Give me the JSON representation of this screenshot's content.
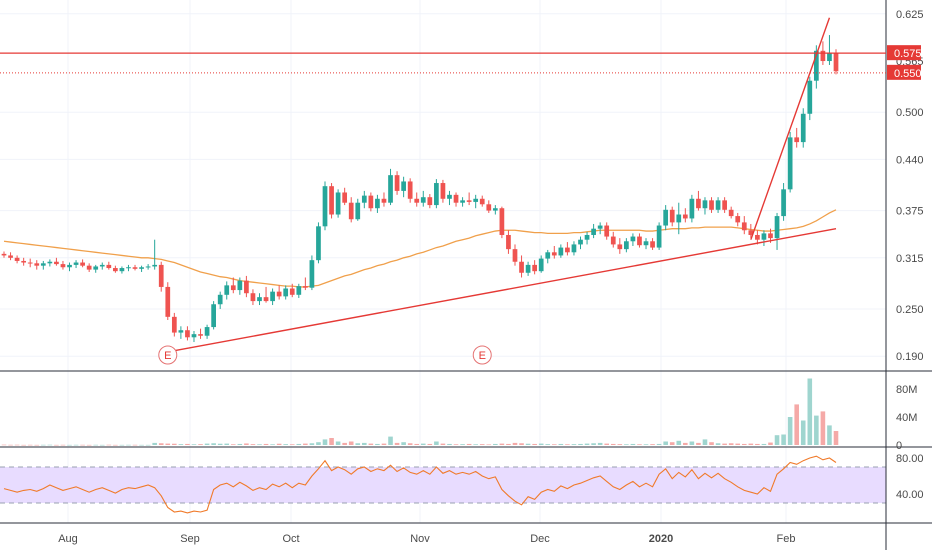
{
  "colors": {
    "up": "#26a69a",
    "down": "#ef5350",
    "ma": "#f0a04b",
    "trendline": "#e53935",
    "level": "#e53935",
    "rsi_line": "#f07a2a",
    "rsi_band": "#e8dcff",
    "grid": "#f0f3fa",
    "axis_text": "#4a4a4a",
    "separator": "#2a2e39"
  },
  "x_axis": {
    "labels": [
      "Aug",
      "Sep",
      "Oct",
      "Nov",
      "Dec",
      "2020",
      "Feb"
    ]
  },
  "price_axis": {
    "ticks": [
      "0.625",
      "0.500",
      "0.440",
      "0.375",
      "0.315",
      "0.250",
      "0.190"
    ],
    "labels_575": "0.575",
    "labels_550": "0.550",
    "hidden_label": "0.565"
  },
  "volume_axis": {
    "ticks": [
      "80M",
      "40M",
      "0"
    ]
  },
  "rsi_axis": {
    "ticks": [
      "80.00",
      "40.00"
    ]
  },
  "earnings_markers": [
    "E",
    "E"
  ],
  "chart_data": {
    "type": "candlestick",
    "x_start": "2019-07-16",
    "ohlc": [
      [
        0.32,
        0.323,
        0.315,
        0.318
      ],
      [
        0.318,
        0.322,
        0.312,
        0.315
      ],
      [
        0.315,
        0.318,
        0.308,
        0.311
      ],
      [
        0.311,
        0.315,
        0.305,
        0.309
      ],
      [
        0.309,
        0.314,
        0.303,
        0.308
      ],
      [
        0.308,
        0.312,
        0.3,
        0.305
      ],
      [
        0.305,
        0.311,
        0.3,
        0.308
      ],
      [
        0.308,
        0.313,
        0.304,
        0.31
      ],
      [
        0.31,
        0.315,
        0.305,
        0.307
      ],
      [
        0.307,
        0.311,
        0.3,
        0.303
      ],
      [
        0.303,
        0.309,
        0.298,
        0.306
      ],
      [
        0.306,
        0.312,
        0.302,
        0.309
      ],
      [
        0.309,
        0.313,
        0.303,
        0.305
      ],
      [
        0.305,
        0.308,
        0.297,
        0.3
      ],
      [
        0.3,
        0.306,
        0.296,
        0.304
      ],
      [
        0.304,
        0.309,
        0.3,
        0.306
      ],
      [
        0.306,
        0.31,
        0.3,
        0.302
      ],
      [
        0.302,
        0.305,
        0.296,
        0.298
      ],
      [
        0.298,
        0.304,
        0.295,
        0.302
      ],
      [
        0.302,
        0.306,
        0.298,
        0.303
      ],
      [
        0.303,
        0.306,
        0.299,
        0.301
      ],
      [
        0.301,
        0.305,
        0.297,
        0.303
      ],
      [
        0.303,
        0.307,
        0.3,
        0.304
      ],
      [
        0.304,
        0.338,
        0.3,
        0.306
      ],
      [
        0.306,
        0.31,
        0.272,
        0.278
      ],
      [
        0.278,
        0.284,
        0.236,
        0.24
      ],
      [
        0.24,
        0.245,
        0.215,
        0.22
      ],
      [
        0.22,
        0.228,
        0.212,
        0.223
      ],
      [
        0.223,
        0.228,
        0.21,
        0.214
      ],
      [
        0.214,
        0.222,
        0.208,
        0.218
      ],
      [
        0.218,
        0.225,
        0.212,
        0.216
      ],
      [
        0.216,
        0.23,
        0.212,
        0.227
      ],
      [
        0.227,
        0.26,
        0.224,
        0.256
      ],
      [
        0.256,
        0.272,
        0.25,
        0.268
      ],
      [
        0.268,
        0.285,
        0.262,
        0.28
      ],
      [
        0.28,
        0.29,
        0.27,
        0.274
      ],
      [
        0.274,
        0.29,
        0.268,
        0.286
      ],
      [
        0.286,
        0.292,
        0.265,
        0.27
      ],
      [
        0.27,
        0.275,
        0.255,
        0.26
      ],
      [
        0.26,
        0.27,
        0.255,
        0.265
      ],
      [
        0.265,
        0.278,
        0.258,
        0.26
      ],
      [
        0.26,
        0.276,
        0.255,
        0.272
      ],
      [
        0.272,
        0.28,
        0.262,
        0.266
      ],
      [
        0.266,
        0.28,
        0.262,
        0.276
      ],
      [
        0.276,
        0.282,
        0.265,
        0.268
      ],
      [
        0.268,
        0.282,
        0.264,
        0.279
      ],
      [
        0.279,
        0.29,
        0.274,
        0.277
      ],
      [
        0.277,
        0.318,
        0.274,
        0.312
      ],
      [
        0.312,
        0.36,
        0.308,
        0.355
      ],
      [
        0.355,
        0.412,
        0.35,
        0.406
      ],
      [
        0.406,
        0.41,
        0.365,
        0.37
      ],
      [
        0.37,
        0.402,
        0.366,
        0.398
      ],
      [
        0.398,
        0.404,
        0.382,
        0.385
      ],
      [
        0.385,
        0.392,
        0.36,
        0.364
      ],
      [
        0.364,
        0.39,
        0.362,
        0.385
      ],
      [
        0.385,
        0.4,
        0.378,
        0.394
      ],
      [
        0.394,
        0.398,
        0.374,
        0.378
      ],
      [
        0.378,
        0.395,
        0.372,
        0.39
      ],
      [
        0.39,
        0.398,
        0.38,
        0.385
      ],
      [
        0.385,
        0.428,
        0.382,
        0.42
      ],
      [
        0.42,
        0.425,
        0.395,
        0.4
      ],
      [
        0.4,
        0.418,
        0.392,
        0.412
      ],
      [
        0.412,
        0.416,
        0.385,
        0.39
      ],
      [
        0.39,
        0.398,
        0.38,
        0.385
      ],
      [
        0.385,
        0.4,
        0.38,
        0.392
      ],
      [
        0.392,
        0.396,
        0.378,
        0.382
      ],
      [
        0.382,
        0.415,
        0.378,
        0.41
      ],
      [
        0.41,
        0.414,
        0.385,
        0.39
      ],
      [
        0.39,
        0.4,
        0.382,
        0.395
      ],
      [
        0.395,
        0.398,
        0.38,
        0.385
      ],
      [
        0.385,
        0.392,
        0.38,
        0.388
      ],
      [
        0.388,
        0.398,
        0.382,
        0.386
      ],
      [
        0.386,
        0.395,
        0.378,
        0.39
      ],
      [
        0.39,
        0.394,
        0.38,
        0.383
      ],
      [
        0.383,
        0.388,
        0.372,
        0.375
      ],
      [
        0.375,
        0.382,
        0.37,
        0.378
      ],
      [
        0.378,
        0.38,
        0.34,
        0.344
      ],
      [
        0.344,
        0.35,
        0.32,
        0.326
      ],
      [
        0.326,
        0.332,
        0.305,
        0.31
      ],
      [
        0.31,
        0.318,
        0.29,
        0.296
      ],
      [
        0.296,
        0.31,
        0.292,
        0.306
      ],
      [
        0.306,
        0.312,
        0.294,
        0.298
      ],
      [
        0.298,
        0.318,
        0.296,
        0.314
      ],
      [
        0.314,
        0.325,
        0.308,
        0.322
      ],
      [
        0.322,
        0.33,
        0.314,
        0.318
      ],
      [
        0.318,
        0.332,
        0.315,
        0.328
      ],
      [
        0.328,
        0.335,
        0.318,
        0.322
      ],
      [
        0.322,
        0.336,
        0.318,
        0.332
      ],
      [
        0.332,
        0.342,
        0.326,
        0.338
      ],
      [
        0.338,
        0.348,
        0.332,
        0.344
      ],
      [
        0.344,
        0.358,
        0.34,
        0.352
      ],
      [
        0.352,
        0.36,
        0.345,
        0.356
      ],
      [
        0.356,
        0.36,
        0.338,
        0.342
      ],
      [
        0.342,
        0.348,
        0.328,
        0.332
      ],
      [
        0.332,
        0.34,
        0.32,
        0.326
      ],
      [
        0.326,
        0.34,
        0.322,
        0.336
      ],
      [
        0.336,
        0.346,
        0.33,
        0.342
      ],
      [
        0.342,
        0.346,
        0.328,
        0.331
      ],
      [
        0.331,
        0.34,
        0.326,
        0.336
      ],
      [
        0.336,
        0.34,
        0.325,
        0.328
      ],
      [
        0.328,
        0.36,
        0.325,
        0.356
      ],
      [
        0.356,
        0.382,
        0.35,
        0.376
      ],
      [
        0.376,
        0.38,
        0.355,
        0.36
      ],
      [
        0.36,
        0.385,
        0.345,
        0.37
      ],
      [
        0.37,
        0.378,
        0.36,
        0.365
      ],
      [
        0.365,
        0.395,
        0.36,
        0.39
      ],
      [
        0.39,
        0.4,
        0.375,
        0.378
      ],
      [
        0.378,
        0.392,
        0.37,
        0.388
      ],
      [
        0.388,
        0.392,
        0.372,
        0.376
      ],
      [
        0.376,
        0.392,
        0.372,
        0.388
      ],
      [
        0.388,
        0.392,
        0.372,
        0.376
      ],
      [
        0.376,
        0.38,
        0.365,
        0.368
      ],
      [
        0.368,
        0.372,
        0.355,
        0.36
      ],
      [
        0.36,
        0.368,
        0.345,
        0.35
      ],
      [
        0.35,
        0.358,
        0.34,
        0.344
      ],
      [
        0.344,
        0.35,
        0.332,
        0.338
      ],
      [
        0.338,
        0.35,
        0.33,
        0.346
      ],
      [
        0.346,
        0.352,
        0.334,
        0.34
      ],
      [
        0.34,
        0.372,
        0.325,
        0.368
      ],
      [
        0.368,
        0.41,
        0.362,
        0.402
      ],
      [
        0.402,
        0.475,
        0.398,
        0.468
      ],
      [
        0.468,
        0.48,
        0.455,
        0.462
      ],
      [
        0.462,
        0.505,
        0.455,
        0.498
      ],
      [
        0.498,
        0.545,
        0.49,
        0.54
      ],
      [
        0.54,
        0.585,
        0.53,
        0.578
      ],
      [
        0.578,
        0.59,
        0.56,
        0.565
      ],
      [
        0.565,
        0.598,
        0.56,
        0.575
      ],
      [
        0.575,
        0.58,
        0.548,
        0.552
      ]
    ],
    "ma": [
      0.336,
      0.335,
      0.334,
      0.333,
      0.332,
      0.331,
      0.33,
      0.329,
      0.328,
      0.327,
      0.326,
      0.325,
      0.324,
      0.323,
      0.322,
      0.321,
      0.32,
      0.319,
      0.318,
      0.317,
      0.316,
      0.315,
      0.315,
      0.314,
      0.313,
      0.311,
      0.309,
      0.306,
      0.303,
      0.3,
      0.297,
      0.295,
      0.293,
      0.291,
      0.29,
      0.288,
      0.286,
      0.285,
      0.284,
      0.283,
      0.282,
      0.281,
      0.28,
      0.279,
      0.279,
      0.278,
      0.278,
      0.279,
      0.28,
      0.283,
      0.286,
      0.289,
      0.292,
      0.294,
      0.297,
      0.3,
      0.302,
      0.305,
      0.307,
      0.31,
      0.312,
      0.315,
      0.317,
      0.32,
      0.322,
      0.325,
      0.328,
      0.33,
      0.333,
      0.336,
      0.338,
      0.34,
      0.343,
      0.345,
      0.347,
      0.349,
      0.35,
      0.35,
      0.35,
      0.349,
      0.348,
      0.347,
      0.347,
      0.346,
      0.346,
      0.346,
      0.346,
      0.347,
      0.347,
      0.348,
      0.349,
      0.35,
      0.35,
      0.35,
      0.35,
      0.35,
      0.35,
      0.35,
      0.349,
      0.349,
      0.35,
      0.351,
      0.352,
      0.352,
      0.352,
      0.353,
      0.353,
      0.354,
      0.354,
      0.354,
      0.354,
      0.354,
      0.353,
      0.352,
      0.351,
      0.35,
      0.349,
      0.349,
      0.35,
      0.351,
      0.352,
      0.353,
      0.355,
      0.358,
      0.362,
      0.367,
      0.372,
      0.376
    ],
    "volume": [
      0.5,
      0.3,
      0.4,
      0.2,
      0.3,
      0.2,
      0.3,
      0.4,
      0.2,
      0.3,
      0.2,
      0.3,
      0.3,
      0.2,
      0.3,
      0.2,
      0.4,
      0.2,
      0.2,
      0.3,
      0.3,
      0.2,
      0.2,
      3.0,
      2.5,
      2.0,
      1.8,
      1.2,
      1.5,
      1.0,
      1.2,
      2.0,
      2.5,
      1.8,
      2.0,
      1.0,
      1.5,
      2.2,
      1.2,
      1.0,
      1.5,
      1.0,
      1.8,
      1.2,
      1.0,
      1.5,
      2.0,
      2.5,
      4.0,
      8.0,
      10.0,
      5.0,
      3.0,
      5.0,
      2.5,
      3.0,
      2.0,
      1.5,
      2.0,
      12.0,
      3.0,
      4.0,
      2.5,
      1.5,
      2.0,
      1.5,
      5.0,
      2.0,
      1.5,
      1.0,
      1.2,
      1.5,
      1.0,
      1.2,
      0.8,
      1.5,
      2.0,
      1.5,
      3.0,
      2.5,
      1.8,
      1.5,
      2.0,
      1.2,
      1.0,
      1.5,
      1.0,
      1.2,
      1.5,
      2.0,
      2.5,
      3.0,
      2.0,
      1.5,
      1.2,
      1.0,
      1.5,
      1.0,
      1.0,
      1.2,
      1.5,
      5.0,
      4.0,
      6.0,
      3.0,
      5.0,
      3.0,
      8.0,
      4.0,
      2.5,
      2.0,
      2.5,
      2.0,
      1.5,
      2.0,
      1.5,
      1.5,
      3.5,
      14.0,
      15.0,
      40.0,
      58.0,
      35.0,
      95.0,
      42.0,
      48.0,
      28.0,
      20.0
    ],
    "rsi": [
      46,
      44,
      42,
      44,
      45,
      43,
      46,
      50,
      47,
      44,
      46,
      48,
      45,
      42,
      45,
      47,
      44,
      41,
      45,
      47,
      46,
      48,
      50,
      47,
      38,
      25,
      20,
      21,
      19,
      21,
      20,
      22,
      45,
      50,
      52,
      48,
      53,
      49,
      44,
      47,
      45,
      51,
      48,
      52,
      47,
      52,
      50,
      60,
      68,
      77,
      66,
      70,
      67,
      62,
      68,
      70,
      65,
      68,
      66,
      72,
      65,
      69,
      64,
      62,
      66,
      62,
      70,
      63,
      66,
      62,
      64,
      62,
      65,
      60,
      57,
      59,
      45,
      38,
      32,
      28,
      37,
      34,
      42,
      45,
      43,
      49,
      46,
      50,
      52,
      55,
      58,
      60,
      54,
      48,
      45,
      50,
      54,
      48,
      52,
      48,
      62,
      68,
      57,
      64,
      59,
      67,
      57,
      63,
      58,
      63,
      57,
      53,
      48,
      44,
      42,
      40,
      47,
      43,
      62,
      68,
      75,
      73,
      77,
      80,
      82,
      78,
      80,
      75
    ],
    "levels": {
      "resistance": 0.575,
      "support": 0.55
    },
    "trendlines": [
      {
        "from_bar": 26,
        "from_price": 0.197,
        "to_bar": 127,
        "to_price": 0.352
      },
      {
        "from_bar": 114,
        "from_price": 0.338,
        "to_bar": 126,
        "to_price": 0.62
      }
    ],
    "earnings_bars": [
      25,
      73
    ],
    "y_range": [
      0.175,
      0.64
    ],
    "volume_range": [
      0,
      100
    ],
    "rsi_range": [
      10,
      90
    ],
    "rsi_band": [
      30,
      70
    ]
  }
}
